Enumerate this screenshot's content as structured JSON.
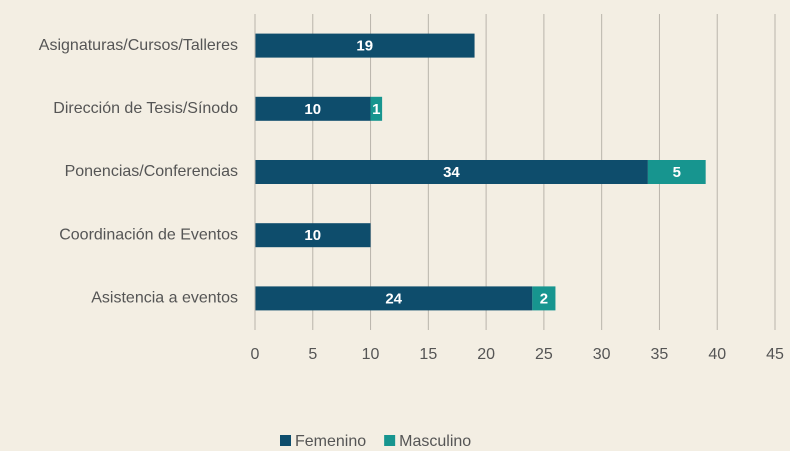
{
  "chart_data": {
    "type": "stacked-barh",
    "categories": [
      "Asignaturas/Cursos/Talleres",
      "Dirección de Tesis/Sínodo",
      "Ponencias/Conferencias",
      "Coordinación de Eventos",
      "Asistencia a eventos"
    ],
    "series": [
      {
        "name": "Femenino",
        "color": "#0e4d6c",
        "values": [
          19,
          10,
          34,
          10,
          24
        ]
      },
      {
        "name": "Masculino",
        "color": "#17958f",
        "values": [
          null,
          1,
          5,
          null,
          2
        ]
      }
    ],
    "xlim": [
      0,
      45
    ],
    "xticks": [
      0,
      5,
      10,
      15,
      20,
      25,
      30,
      35,
      40,
      45
    ],
    "grid": true,
    "legend": "bottom"
  }
}
